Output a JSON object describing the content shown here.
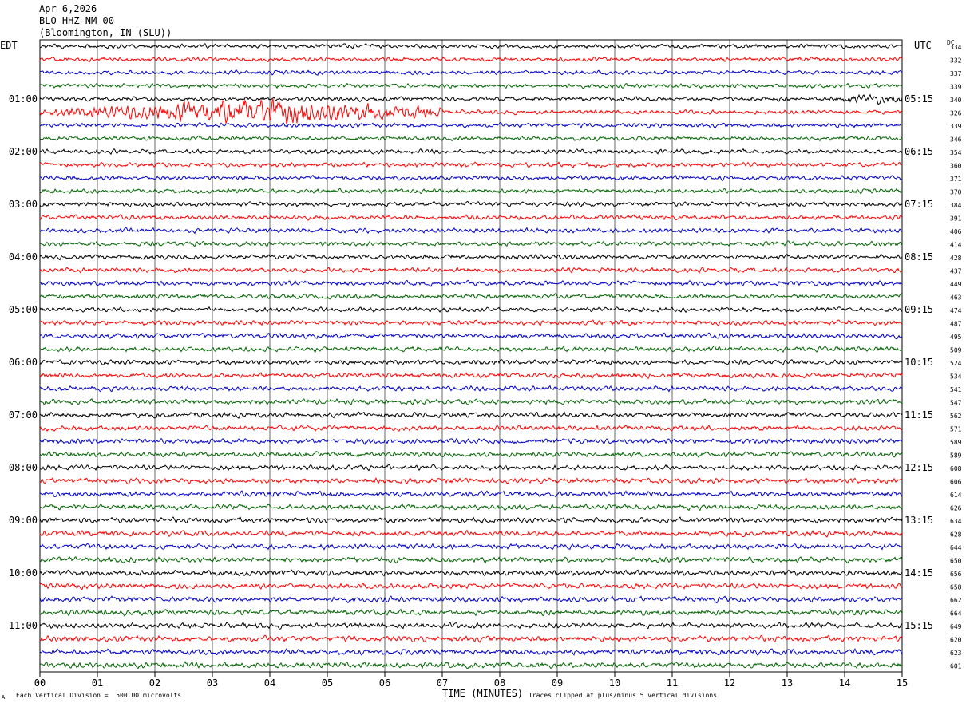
{
  "header": {
    "date": "Apr 6,2026",
    "station": "BLO HHZ NM 00",
    "location": "(Bloomington, IN (SLU))"
  },
  "axis": {
    "left_tz": "EDT",
    "right_tz": "UTC",
    "dc_label": "DC",
    "xlabel": "TIME (MINUTES)",
    "x_ticks": [
      "00",
      "01",
      "02",
      "03",
      "04",
      "05",
      "06",
      "07",
      "08",
      "09",
      "10",
      "11",
      "12",
      "13",
      "14",
      "15"
    ]
  },
  "footer": {
    "scale_note": "Each Vertical Division =  500.00 microvolts",
    "clip_note": "Traces clipped at plus/minus 5 vertical divisions",
    "corner_mark": "A"
  },
  "chart_data": {
    "type": "line",
    "subtype": "helicorder",
    "minutes_per_line": 15,
    "x_range_minutes": [
      0,
      15
    ],
    "trace_colors": [
      "#000000",
      "#ff0000",
      "#0000c8",
      "#006400"
    ],
    "grid": true,
    "left_time_labels": [
      "01:00",
      "02:00",
      "03:00",
      "04:00",
      "05:00",
      "06:00",
      "07:00",
      "08:00",
      "09:00",
      "10:00",
      "11:00"
    ],
    "right_time_labels": [
      "05:15",
      "06:15",
      "07:15",
      "08:15",
      "09:15",
      "10:15",
      "11:15",
      "12:15",
      "13:15",
      "14:15",
      "15:15"
    ],
    "dc_offsets": [
      334,
      332,
      337,
      339,
      340,
      326,
      339,
      346,
      354,
      360,
      371,
      370,
      384,
      391,
      406,
      414,
      428,
      437,
      449,
      463,
      474,
      487,
      495,
      509,
      524,
      534,
      541,
      547,
      562,
      571,
      589,
      589,
      608,
      606,
      614,
      626,
      634,
      628,
      644,
      650,
      656,
      658,
      662,
      664,
      649,
      620,
      623,
      601
    ],
    "events": [
      {
        "line_index": 5,
        "start_minute": 0,
        "end_minute": 7,
        "peak_minute": 3.8,
        "description": "large amplitude signal"
      },
      {
        "line_index": 4,
        "start_minute": 13.5,
        "end_minute": 15,
        "peak_minute": 14.5,
        "description": "increased amplitude"
      }
    ]
  }
}
